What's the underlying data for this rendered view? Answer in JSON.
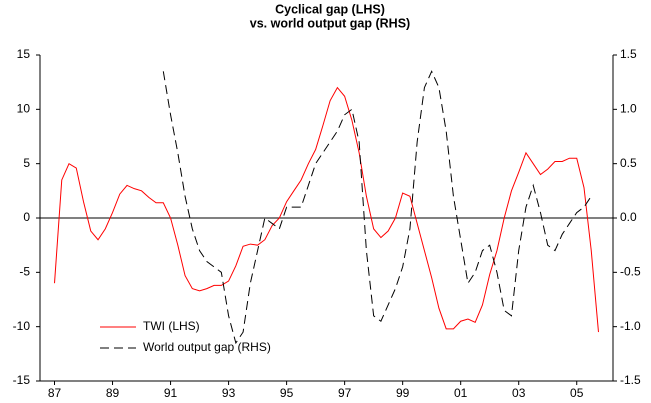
{
  "chart_data": {
    "type": "line",
    "title": "Cyclical gap (LHS)",
    "subtitle": "vs. world output gap (RHS)",
    "x": [
      1987,
      1987.25,
      1987.5,
      1987.75,
      1988,
      1988.25,
      1988.5,
      1988.75,
      1989,
      1989.25,
      1989.5,
      1989.75,
      1990,
      1990.25,
      1990.5,
      1990.75,
      1991,
      1991.25,
      1991.5,
      1991.75,
      1992,
      1992.25,
      1992.5,
      1992.75,
      1993,
      1993.25,
      1993.5,
      1993.75,
      1994,
      1994.25,
      1994.5,
      1994.75,
      1995,
      1995.25,
      1995.5,
      1995.75,
      1996,
      1996.25,
      1996.5,
      1996.75,
      1997,
      1997.25,
      1997.5,
      1997.75,
      1998,
      1998.25,
      1998.5,
      1998.75,
      1999,
      1999.25,
      1999.5,
      1999.75,
      2000,
      2000.25,
      2000.5,
      2000.75,
      2001,
      2001.25,
      2001.5,
      2001.75,
      2002,
      2002.25,
      2002.5,
      2002.75,
      2003,
      2003.25,
      2003.5,
      2003.75,
      2004,
      2004.25,
      2004.5,
      2004.75,
      2005,
      2005.25,
      2005.5,
      2005.75
    ],
    "series": [
      {
        "name": "TWI (LHS)",
        "color": "#ff0000",
        "dash": false,
        "values": [
          -6,
          3.5,
          5,
          4.6,
          1.5,
          -1.2,
          -2,
          -1,
          0.5,
          2.2,
          3,
          2.7,
          2.5,
          1.9,
          1.4,
          1.4,
          0,
          -2.5,
          -5.3,
          -6.5,
          -6.7,
          -6.5,
          -6.2,
          -6.2,
          -5.8,
          -4.4,
          -2.6,
          -2.4,
          -2.5,
          -2,
          -0.7,
          0,
          1.5,
          2.5,
          3.5,
          5,
          6.3,
          8.5,
          10.8,
          12,
          11.2,
          9,
          6,
          2,
          -1,
          -1.8,
          -1.2,
          0,
          2.3,
          2,
          -0.5,
          -3,
          -5.5,
          -8.3,
          -10.2,
          -10.2,
          -9.5,
          -9.3,
          -9.6,
          -8,
          -5.2,
          -3,
          0,
          2.5,
          4.2,
          6,
          5,
          4,
          4.5,
          5.2,
          5.2,
          5.5,
          5.5,
          2.8,
          -3,
          -10.5
        ]
      },
      {
        "name": "World output gap (RHS)",
        "color": "#000000",
        "dash": true,
        "axis": "y2",
        "values": [
          null,
          null,
          null,
          null,
          null,
          null,
          null,
          null,
          null,
          null,
          null,
          null,
          null,
          null,
          null,
          1.35,
          0.95,
          0.6,
          0.2,
          -0.1,
          -0.3,
          -0.4,
          -0.45,
          -0.5,
          -0.9,
          -1.15,
          -1.05,
          -0.6,
          -0.3,
          0,
          -0.05,
          -0.1,
          0.1,
          0.1,
          0.1,
          0.3,
          0.5,
          0.6,
          0.7,
          0.8,
          0.95,
          1.0,
          0.7,
          -0.3,
          -0.9,
          -0.95,
          -0.8,
          -0.65,
          -0.45,
          -0.1,
          0.7,
          1.2,
          1.35,
          1.2,
          0.8,
          0.2,
          -0.2,
          -0.6,
          -0.5,
          -0.3,
          -0.25,
          -0.5,
          -0.85,
          -0.9,
          -0.3,
          0.1,
          0.3,
          0.05,
          -0.25,
          -0.3,
          -0.15,
          -0.05,
          0.05,
          0.1,
          0.2,
          null
        ]
      }
    ],
    "xlim": [
      1986.5,
      2006.25
    ],
    "xticks": [
      {
        "value": 1987,
        "label": "87"
      },
      {
        "value": 1989,
        "label": "89"
      },
      {
        "value": 1991,
        "label": "91"
      },
      {
        "value": 1993,
        "label": "93"
      },
      {
        "value": 1995,
        "label": "95"
      },
      {
        "value": 1997,
        "label": "97"
      },
      {
        "value": 1999,
        "label": "99"
      },
      {
        "value": 2001,
        "label": "01"
      },
      {
        "value": 2003,
        "label": "03"
      },
      {
        "value": 2005,
        "label": "05"
      }
    ],
    "ylim": [
      -15,
      15
    ],
    "yticks": [
      -15,
      -10,
      -5,
      0,
      5,
      10,
      15
    ],
    "y2lim": [
      -1.5,
      1.5
    ],
    "y2ticks": [
      -1.5,
      {
        "value": -1,
        "label": "-1.0"
      },
      -0.5,
      {
        "value": 0,
        "label": "0.0"
      },
      0.5,
      {
        "value": 1,
        "label": "1.0"
      },
      1.5
    ],
    "legend": "lower left"
  }
}
